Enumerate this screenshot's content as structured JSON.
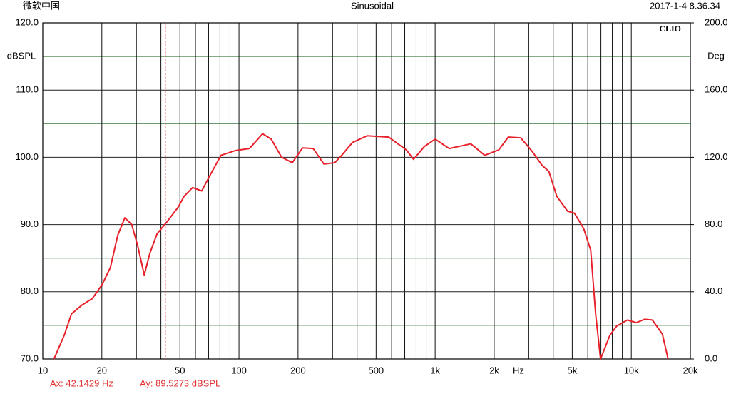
{
  "chart_data": {
    "type": "line",
    "top_left": "微软中国",
    "title": "Sinusoidal",
    "timestamp": "2017-1-4 8.36.34",
    "logo": "CLIO",
    "y_label": "dBSPL",
    "y2_label": "Deg",
    "x_unit": "Hz",
    "xlog": true,
    "grid": true,
    "xlim": [
      10,
      20000
    ],
    "ylim": [
      70,
      120
    ],
    "y2lim": [
      0,
      200
    ],
    "xticks": [
      10,
      20,
      50,
      100,
      200,
      500,
      {
        "value": 1000,
        "label": "1k"
      },
      {
        "value": 2000,
        "label": "2k"
      },
      {
        "value": 5000,
        "label": "5k"
      },
      {
        "value": 10000,
        "label": "10k"
      },
      {
        "value": 20000,
        "label": "20k"
      }
    ],
    "xminor": [
      30,
      40,
      60,
      70,
      80,
      90,
      300,
      400,
      600,
      700,
      800,
      900,
      3000,
      4000,
      6000,
      7000,
      8000,
      9000
    ],
    "yticks": [
      {
        "value": 70,
        "label": "70.0"
      },
      {
        "value": 80,
        "label": "80.0"
      },
      {
        "value": 90,
        "label": "90.0"
      },
      {
        "value": 100,
        "label": "100.0"
      },
      {
        "value": 110,
        "label": "110.0"
      },
      {
        "value": 120,
        "label": "120.0"
      }
    ],
    "yminor": [
      75,
      85,
      95,
      105,
      115
    ],
    "y2ticks": [
      {
        "value": 0,
        "label": "0.0"
      },
      {
        "value": 40,
        "label": "40.0"
      },
      {
        "value": 80,
        "label": "80.0"
      },
      {
        "value": 120,
        "label": "120.0"
      },
      {
        "value": 160,
        "label": "160.0"
      },
      {
        "value": 200,
        "label": "200.0"
      }
    ],
    "cursor": {
      "x": 42.1429,
      "y": 89.5273,
      "x_label": "Ax: 42.1429 Hz",
      "y_label": "Ay: 89.5273 dBSPL",
      "color": "#e03030"
    },
    "x": [
      11.4,
      12.85,
      14.0,
      15.8,
      17.9,
      20,
      22.1,
      24.1,
      26.2,
      28.4,
      30.5,
      32.9,
      35.1,
      38.2,
      43.2,
      49,
      52.5,
      58,
      64.6,
      71.4,
      81,
      96,
      113,
      132,
      146,
      165,
      187,
      211,
      239,
      271,
      308,
      334,
      379,
      450,
      580,
      713,
      776,
      881,
      1000,
      1180,
      1520,
      1790,
      2110,
      2360,
      2730,
      3100,
      3510,
      3800,
      4170,
      4730,
      5130,
      5720,
      6210,
      6580,
      6970,
      7770,
      8430,
      9550,
      10600,
      11700,
      12800,
      14400,
      15400
    ],
    "series": [
      {
        "color": "#e8202a",
        "values": [
          70,
          73.5,
          76.7,
          78,
          79,
          81,
          83.6,
          88.4,
          91,
          90,
          86.8,
          82.5,
          85.7,
          88.6,
          90.5,
          92.6,
          94.2,
          95.5,
          95,
          97.4,
          100.3,
          101,
          101.3,
          103.5,
          102.7,
          100,
          99.2,
          101.4,
          101.3,
          99,
          99.2,
          100.3,
          102.2,
          103.2,
          103,
          101.1,
          99.7,
          101.6,
          102.7,
          101.3,
          102,
          100.3,
          101.1,
          103,
          102.9,
          101,
          98.8,
          97.9,
          94.2,
          92,
          91.7,
          89.4,
          86.2,
          76.7,
          70,
          73.5,
          74.9,
          75.8,
          75.4,
          75.9,
          75.8,
          73.7,
          70
        ]
      }
    ]
  }
}
